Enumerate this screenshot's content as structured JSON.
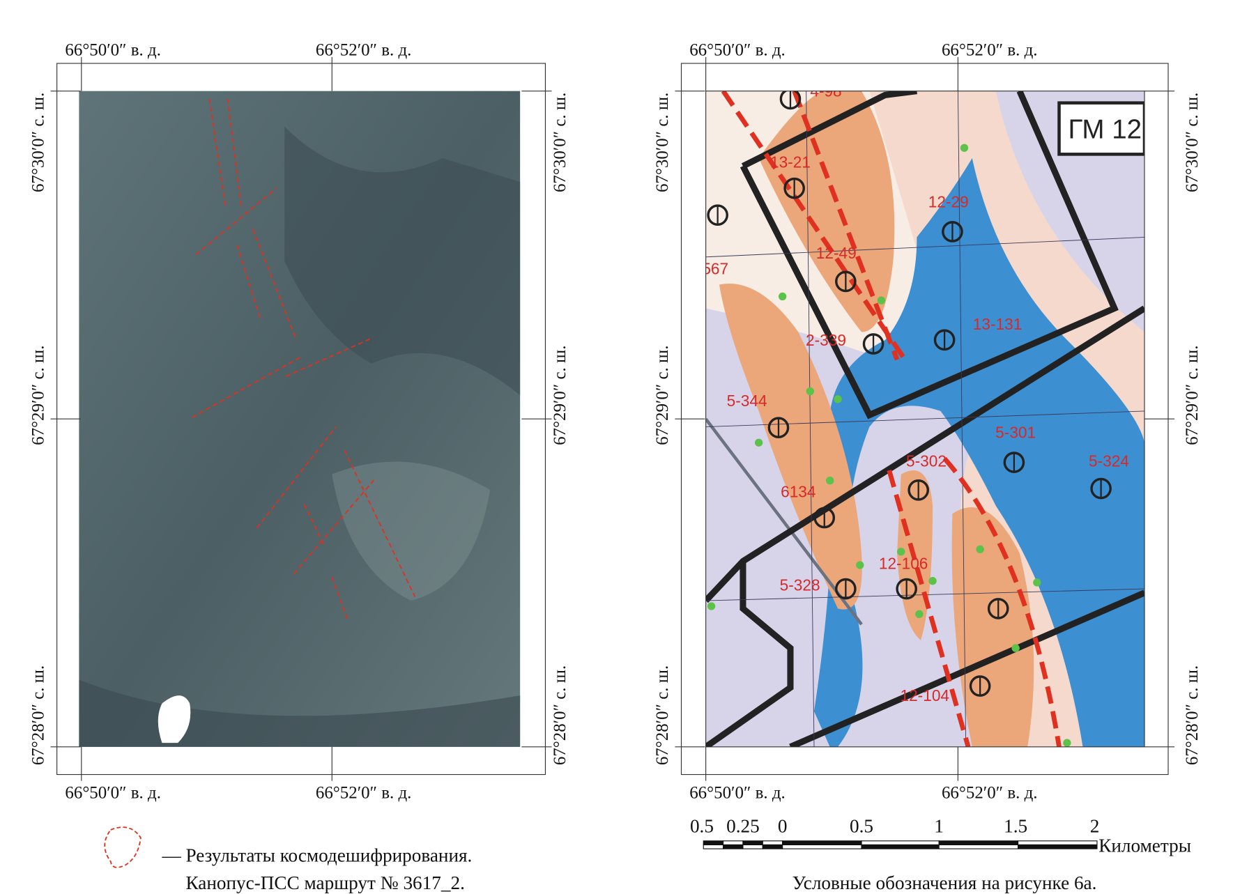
{
  "left_map": {
    "top_labels": [
      "66°50′0″ в. д.",
      "66°52′0″ в. д."
    ],
    "bottom_labels": [
      "66°50′0″ в. д.",
      "66°52′0″ в. д."
    ],
    "left_labels": [
      "67°30′0″ с. ш.",
      "67°29′0″ с. ш.",
      "67°28′0″ с. ш."
    ],
    "right_labels": [
      "67°30′0″ с. ш.",
      "67°29′0″ с. ш.",
      "67°28′0″ с. ш."
    ]
  },
  "right_map": {
    "top_labels": [
      "66°50′0″ в. д.",
      "66°52′0″ в. д."
    ],
    "bottom_labels": [
      "66°50′0″ в. д.",
      "66°52′0″ в. д."
    ],
    "left_labels": [
      "67°30′0″ с. ш.",
      "67°29′0″ с. ш.",
      "67°28′0″ с. ш."
    ],
    "right_labels": [
      "67°30′0″ с. ш.",
      "67°29′0″ с. ш.",
      "67°28′0″ с. ш."
    ],
    "sheet_label": "ГМ 12",
    "point_labels": [
      "4-98",
      "13-21",
      "12-29",
      "12-49",
      "13-131",
      "2-339",
      "5-344",
      "5-301",
      "5-302",
      "5-324",
      "6134",
      "12-106",
      "5-328",
      "12-104",
      "567"
    ]
  },
  "legend": {
    "line_1": "— Результаты космодешифрирования.",
    "line_2": "Канопус-ПСС маршрут № 3617_2."
  },
  "scale_bar": {
    "ticks": [
      "0.5",
      "0.25",
      "0",
      "0.5",
      "1",
      "1.5",
      "2"
    ],
    "unit": "Километры"
  },
  "caption": "Условные обозначения на рисунке 6а."
}
